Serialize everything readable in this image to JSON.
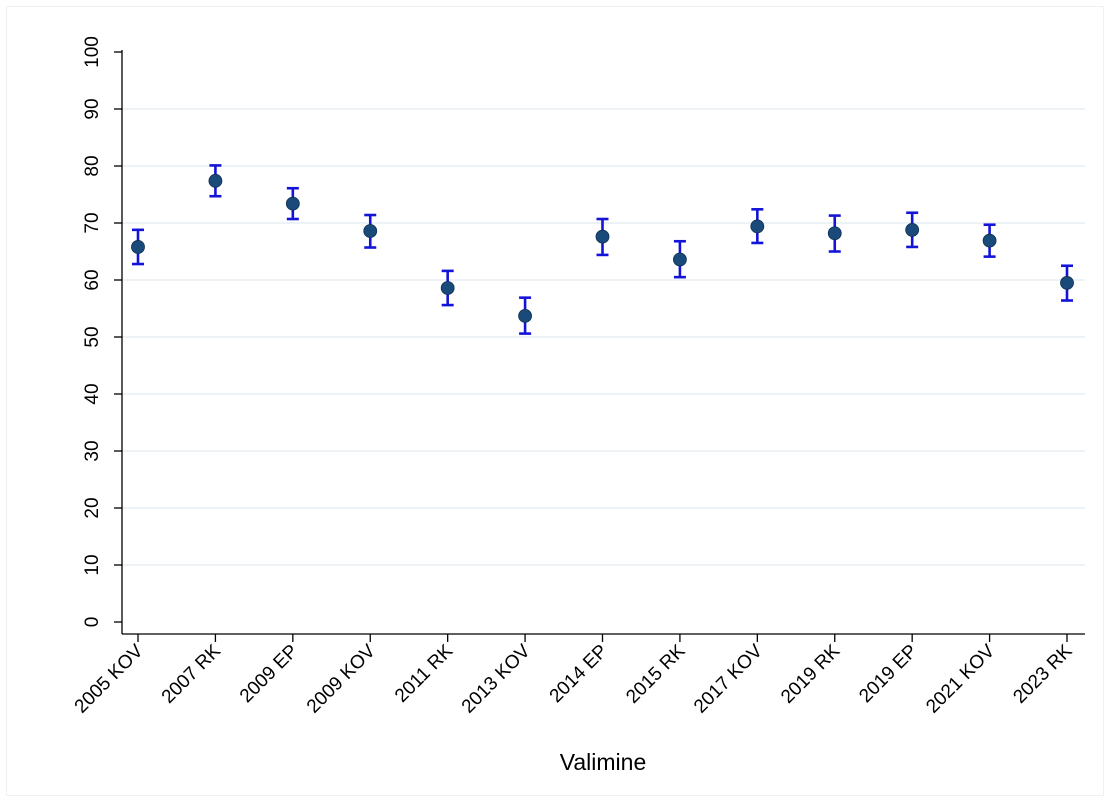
{
  "chart_data": {
    "type": "scatter",
    "title": "",
    "xlabel": "Valimine",
    "ylabel": "",
    "ylim": [
      0,
      100
    ],
    "yticks": [
      0,
      10,
      20,
      30,
      40,
      50,
      60,
      70,
      80,
      90,
      100
    ],
    "grid": true,
    "categories": [
      "2005 KOV",
      "2007 RK",
      "2009 EP",
      "2009 KOV",
      "2011 RK",
      "2013 KOV",
      "2014 EP",
      "2015 RK",
      "2017 KOV",
      "2019 RK",
      "2019 EP",
      "2021 KOV",
      "2023 RK"
    ],
    "values": [
      65.8,
      77.4,
      73.4,
      68.6,
      58.6,
      53.7,
      67.6,
      63.6,
      69.4,
      68.2,
      68.8,
      66.9,
      59.5
    ],
    "error_low": [
      62.8,
      74.7,
      70.7,
      65.7,
      55.6,
      50.6,
      64.4,
      60.5,
      66.5,
      65.0,
      65.8,
      64.1,
      56.4
    ],
    "error_high": [
      68.8,
      80.1,
      76.1,
      71.4,
      61.6,
      56.9,
      70.7,
      66.8,
      72.4,
      71.3,
      71.8,
      69.7,
      62.5
    ],
    "colors": {
      "marker": "#1a4a7a",
      "error_bar": "#1414d8",
      "grid": "#e6eef2",
      "axis": "#000000"
    }
  }
}
